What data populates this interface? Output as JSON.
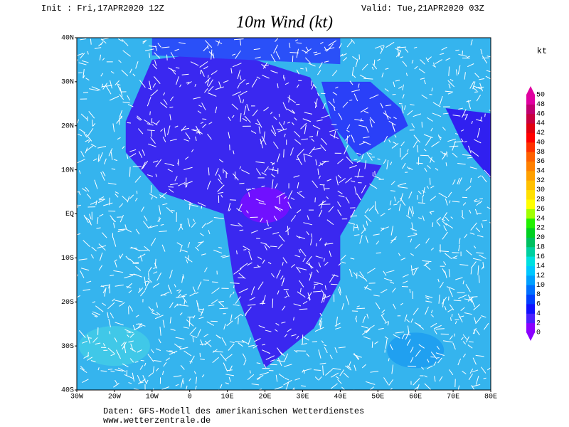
{
  "header": {
    "init": "Init : Fri,17APR2020 12Z",
    "valid": "Valid: Tue,21APR2020 03Z",
    "title": "10m Wind (kt)"
  },
  "map": {
    "lon_labels": [
      "30W",
      "20W",
      "10W",
      "0",
      "10E",
      "20E",
      "30E",
      "40E",
      "50E",
      "60E",
      "70E",
      "80E"
    ],
    "lat_labels": [
      "40N",
      "30N",
      "20N",
      "10N",
      "EQ",
      "10S",
      "20S",
      "30S",
      "40S"
    ]
  },
  "colorbar": {
    "unit": "kt",
    "levels": [
      0,
      2,
      4,
      6,
      8,
      10,
      12,
      14,
      16,
      18,
      20,
      22,
      24,
      26,
      28,
      30,
      32,
      34,
      36,
      38,
      40,
      42,
      44,
      46,
      48,
      50
    ],
    "colors": [
      "#8a00ff",
      "#4a20ff",
      "#1010ff",
      "#0040ff",
      "#0070ff",
      "#00a0ff",
      "#00c8ff",
      "#00e0e0",
      "#00d0a0",
      "#00c060",
      "#00d020",
      "#20f000",
      "#a0ff00",
      "#ffff00",
      "#ffe000",
      "#ffc000",
      "#ffa000",
      "#ff8000",
      "#ff6000",
      "#ff3000",
      "#ff0000",
      "#e00010",
      "#c80040",
      "#c00070",
      "#e000a0"
    ]
  },
  "footer": {
    "source": "Daten: GFS-Modell des amerikanischen Wetterdienstes",
    "site": "www.wetterzentrale.de"
  }
}
